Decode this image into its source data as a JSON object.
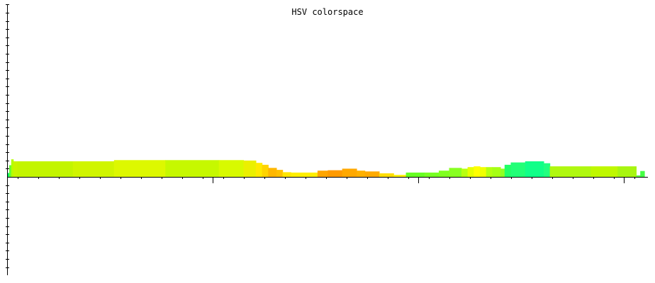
{
  "chart_data": {
    "type": "area",
    "title": "HSV colorspace",
    "xlabel": "",
    "ylabel": "",
    "grid": false,
    "legend": "none",
    "xlim": [
      0,
      1000
    ],
    "ylim": [
      -50,
      89
    ],
    "x_major_ticks": [
      100,
      200,
      300
    ],
    "segments": [
      {
        "x0": 0,
        "x1": 1,
        "y": 2,
        "color": "#00ff66"
      },
      {
        "x0": 1,
        "x2": 2,
        "x1": 2,
        "y": 6,
        "color": "#66ff33"
      },
      {
        "x0": 2,
        "x1": 3,
        "y": 9,
        "color": "#b3ff00"
      },
      {
        "x0": 3,
        "x1": 5,
        "y": 8,
        "color": "#c8f500"
      },
      {
        "x0": 5,
        "x1": 32,
        "y": 8,
        "color": "#c3f500"
      },
      {
        "x0": 32,
        "x1": 52,
        "y": 8,
        "color": "#d0f500"
      },
      {
        "x0": 52,
        "x1": 77,
        "y": 8.6,
        "color": "#ddf800"
      },
      {
        "x0": 77,
        "x1": 103,
        "y": 8.6,
        "color": "#c6f800"
      },
      {
        "x0": 103,
        "x1": 115,
        "y": 8.6,
        "color": "#d8fa00"
      },
      {
        "x0": 115,
        "x1": 121,
        "y": 8.4,
        "color": "#ebf000"
      },
      {
        "x0": 121,
        "x1": 124,
        "y": 7.2,
        "color": "#ffea00"
      },
      {
        "x0": 124,
        "x1": 127,
        "y": 6.2,
        "color": "#ffd400"
      },
      {
        "x0": 127,
        "x1": 131,
        "y": 4.6,
        "color": "#ffb700"
      },
      {
        "x0": 131,
        "x1": 134,
        "y": 3.6,
        "color": "#ffc000"
      },
      {
        "x0": 134,
        "x1": 138,
        "y": 2.4,
        "color": "#ffe600"
      },
      {
        "x0": 138,
        "x1": 151,
        "y": 2.2,
        "color": "#ffee00"
      },
      {
        "x0": 151,
        "x1": 156,
        "y": 3.2,
        "color": "#ffa500"
      },
      {
        "x0": 156,
        "x1": 163,
        "y": 3.4,
        "color": "#ff9a00"
      },
      {
        "x0": 163,
        "x1": 170,
        "y": 4.2,
        "color": "#ffa800"
      },
      {
        "x0": 170,
        "x1": 174,
        "y": 3.2,
        "color": "#ffb000"
      },
      {
        "x0": 174,
        "x1": 181,
        "y": 2.8,
        "color": "#ffaa00"
      },
      {
        "x0": 181,
        "x1": 188,
        "y": 1.8,
        "color": "#ffdd00"
      },
      {
        "x0": 188,
        "x1": 194,
        "y": 1,
        "color": "#fff200"
      },
      {
        "x0": 194,
        "x1": 203,
        "y": 2.2,
        "color": "#66ff22"
      },
      {
        "x0": 203,
        "x1": 210,
        "y": 2.2,
        "color": "#77ff22"
      },
      {
        "x0": 210,
        "x1": 215,
        "y": 3.2,
        "color": "#80ff20"
      },
      {
        "x0": 215,
        "x1": 221,
        "y": 4.6,
        "color": "#88ff22"
      },
      {
        "x0": 221,
        "x1": 224,
        "y": 4.2,
        "color": "#b8ff10"
      },
      {
        "x0": 224,
        "x1": 227,
        "y": 5,
        "color": "#e6ff00"
      },
      {
        "x0": 227,
        "x1": 230,
        "y": 5.4,
        "color": "#ffff00"
      },
      {
        "x0": 230,
        "x1": 233,
        "y": 5,
        "color": "#f0ff00"
      },
      {
        "x0": 233,
        "x1": 236,
        "y": 5,
        "color": "#b4ff10"
      },
      {
        "x0": 236,
        "x1": 240,
        "y": 5,
        "color": "#a6ff14"
      },
      {
        "x0": 240,
        "x1": 242,
        "y": 4.2,
        "color": "#90ff22"
      },
      {
        "x0": 242,
        "x1": 245,
        "y": 6.2,
        "color": "#22ff66"
      },
      {
        "x0": 245,
        "x1": 252,
        "y": 7.4,
        "color": "#22ff77"
      },
      {
        "x0": 252,
        "x1": 261,
        "y": 8,
        "color": "#11ff88"
      },
      {
        "x0": 261,
        "x1": 264,
        "y": 7,
        "color": "#22ff80"
      },
      {
        "x0": 264,
        "x1": 284,
        "y": 5.4,
        "color": "#b0f810"
      },
      {
        "x0": 284,
        "x1": 297,
        "y": 5.4,
        "color": "#bff800"
      },
      {
        "x0": 297,
        "x1": 306,
        "y": 5.4,
        "color": "#a8f510"
      },
      {
        "x0": 306,
        "x1": 308,
        "y": 0.8,
        "color": "#66ff44"
      },
      {
        "x0": 308,
        "x1": 310,
        "y": 3,
        "color": "#44ff44"
      }
    ]
  }
}
